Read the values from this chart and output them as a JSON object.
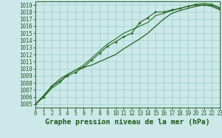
{
  "title": "Graphe pression niveau de la mer (hPa)",
  "xlabel_hours": [
    0,
    1,
    2,
    3,
    4,
    5,
    6,
    7,
    8,
    9,
    10,
    11,
    12,
    13,
    14,
    15,
    16,
    17,
    18,
    19,
    20,
    21,
    22,
    23
  ],
  "series_marker": [
    1005.0,
    1006.0,
    1007.5,
    1008.2,
    1009.0,
    1009.5,
    1010.2,
    1011.2,
    1012.2,
    1013.2,
    1013.8,
    1014.5,
    1015.0,
    1016.5,
    1017.2,
    1018.0,
    1018.0,
    1018.3,
    1018.5,
    1018.8,
    1019.0,
    1019.0,
    1019.0,
    1018.5
  ],
  "series_upper": [
    1005.0,
    1006.0,
    1007.2,
    1008.0,
    1009.2,
    1009.8,
    1010.5,
    1011.5,
    1012.5,
    1013.5,
    1014.2,
    1015.0,
    1015.5,
    1016.0,
    1016.5,
    1017.5,
    1017.8,
    1018.2,
    1018.5,
    1018.8,
    1019.1,
    1019.2,
    1019.1,
    1018.6
  ],
  "series_lower": [
    1005.0,
    1006.2,
    1007.5,
    1008.5,
    1009.2,
    1009.8,
    1010.2,
    1010.5,
    1011.0,
    1011.5,
    1012.0,
    1012.8,
    1013.5,
    1014.2,
    1015.0,
    1016.0,
    1017.0,
    1017.8,
    1018.2,
    1018.5,
    1018.8,
    1019.0,
    1018.8,
    1018.3
  ],
  "ylim_min": 1005,
  "ylim_max": 1019,
  "line_color_dark": "#1a5c1a",
  "line_color_mid": "#2a7a2a",
  "bg_color": "#cce8e8",
  "grid_color": "#99cccc",
  "text_color": "#1a5a1a",
  "spine_color": "#336633",
  "title_fontsize": 7.5,
  "tick_fontsize": 5.5
}
